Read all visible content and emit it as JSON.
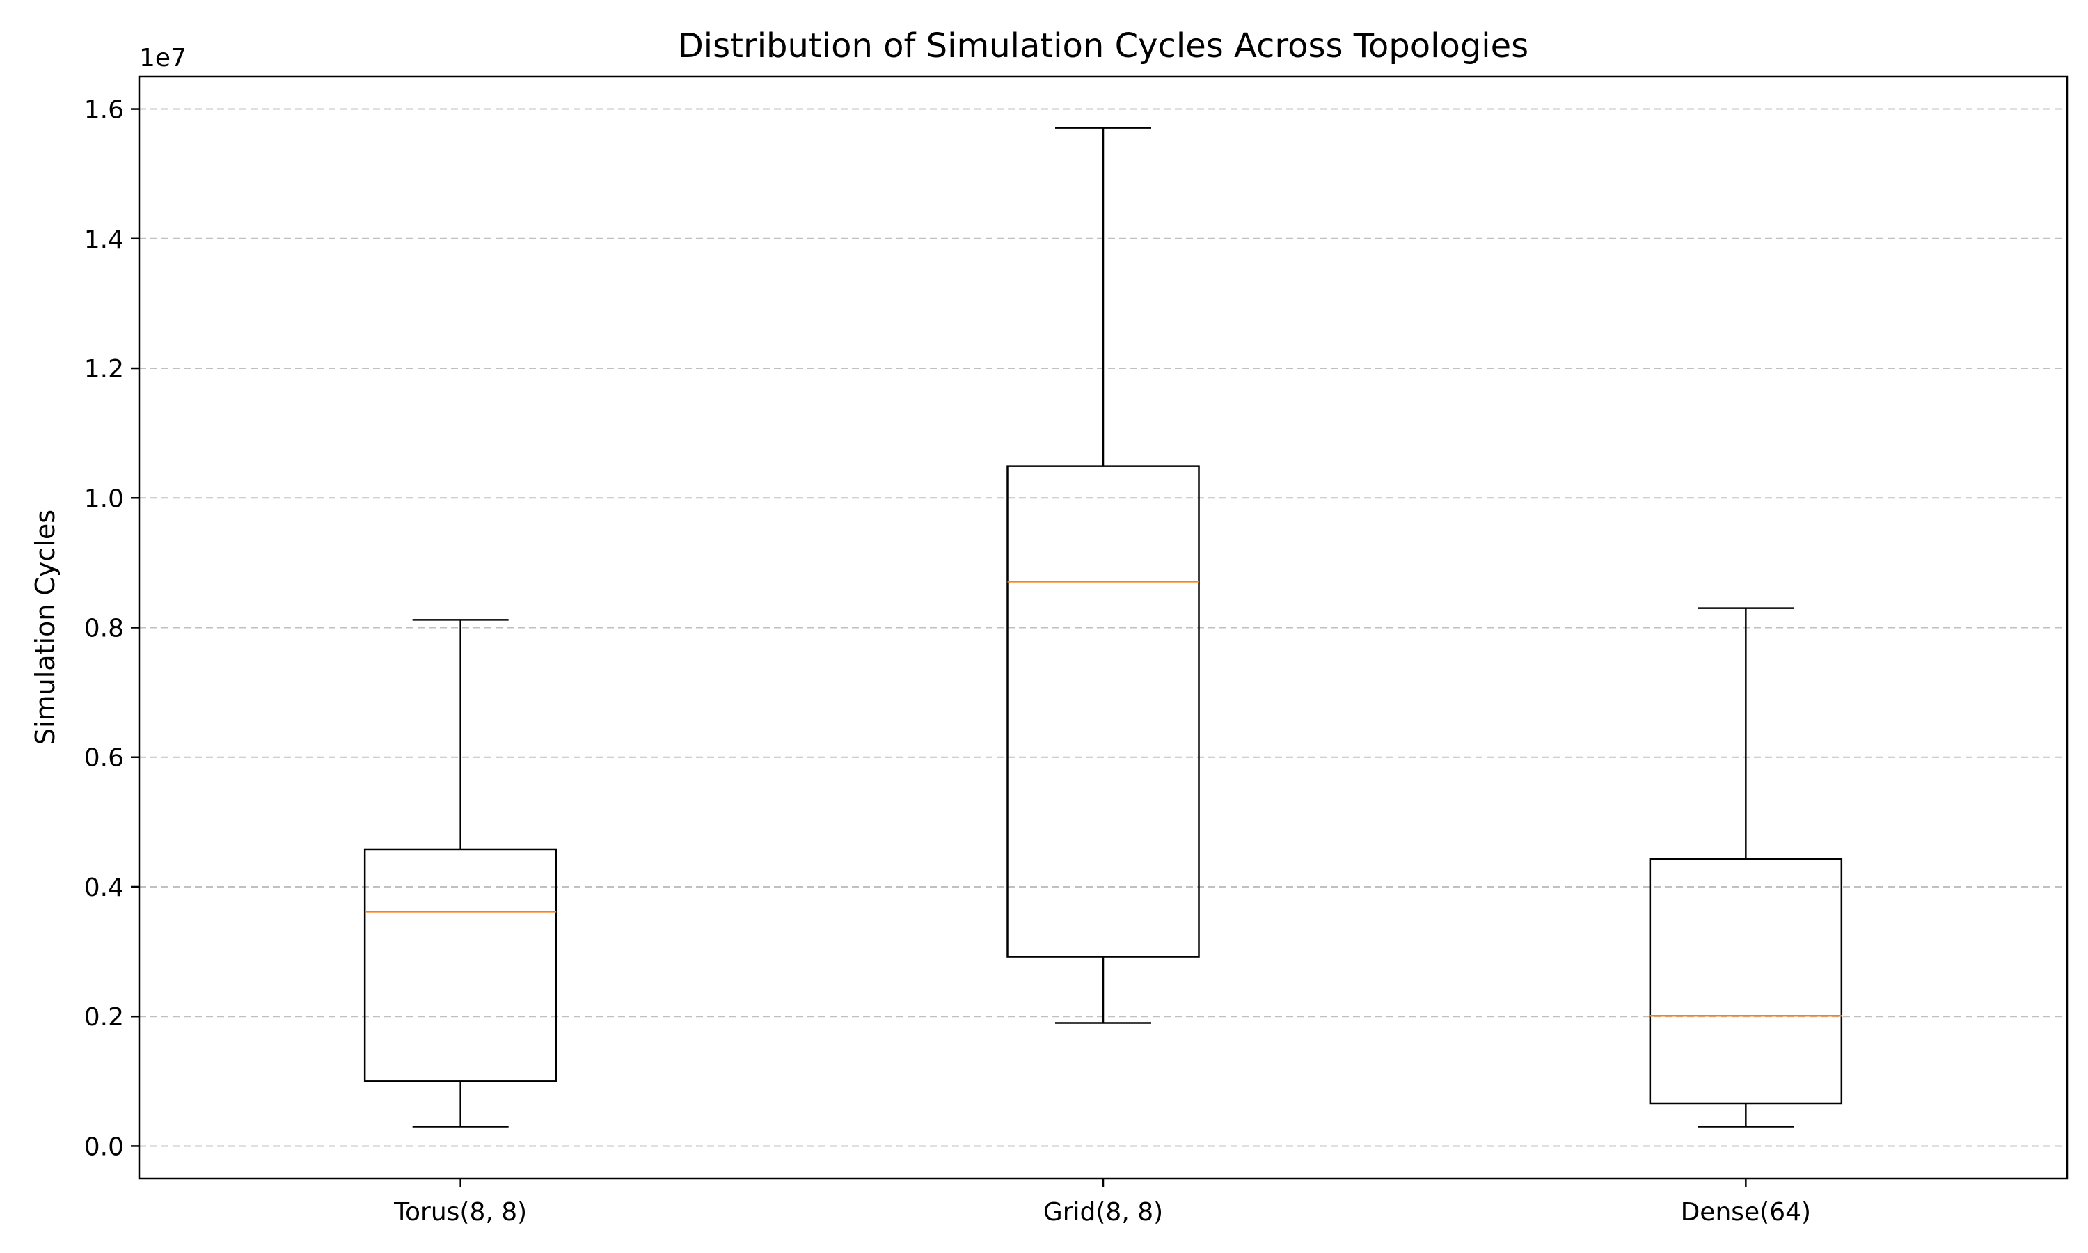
{
  "chart_data": {
    "type": "box",
    "title": "Distribution of Simulation Cycles Across Topologies",
    "xlabel": "",
    "ylabel": "Simulation Cycles",
    "y_offset_label": "1e7",
    "ylim": [
      -0.05,
      1.65
    ],
    "y_ticks": [
      0.0,
      0.2,
      0.4,
      0.6,
      0.8,
      1.0,
      1.2,
      1.4,
      1.6
    ],
    "y_tick_labels": [
      "0.0",
      "0.2",
      "0.4",
      "0.6",
      "0.8",
      "1.0",
      "1.2",
      "1.4",
      "1.6"
    ],
    "grid": "y-dashed",
    "categories": [
      "Torus(8, 8)",
      "Grid(8, 8)",
      "Dense(64)"
    ],
    "boxes": [
      {
        "category": "Torus(8, 8)",
        "whisker_low": 0.03,
        "q1": 0.1,
        "median": 0.362,
        "q3": 0.458,
        "whisker_high": 0.812
      },
      {
        "category": "Grid(8, 8)",
        "whisker_low": 0.19,
        "q1": 0.292,
        "median": 0.871,
        "q3": 1.049,
        "whisker_high": 1.571
      },
      {
        "category": "Dense(64)",
        "whisker_low": 0.03,
        "q1": 0.066,
        "median": 0.201,
        "q3": 0.443,
        "whisker_high": 0.83
      }
    ],
    "colors": {
      "box": "#000000",
      "median": "#ff7f0e",
      "grid": "#c0c0c0"
    }
  }
}
